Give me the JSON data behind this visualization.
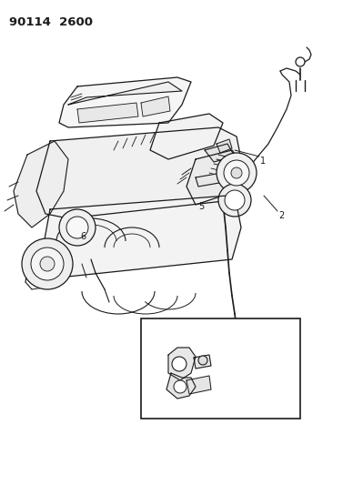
{
  "background_color": "#ffffff",
  "header_text": "90114  2600",
  "header_fontsize": 9.5,
  "fig_width": 3.99,
  "fig_height": 5.33,
  "line_color": "#1a1a1a",
  "label_fontsize": 7,
  "dpi": 100
}
